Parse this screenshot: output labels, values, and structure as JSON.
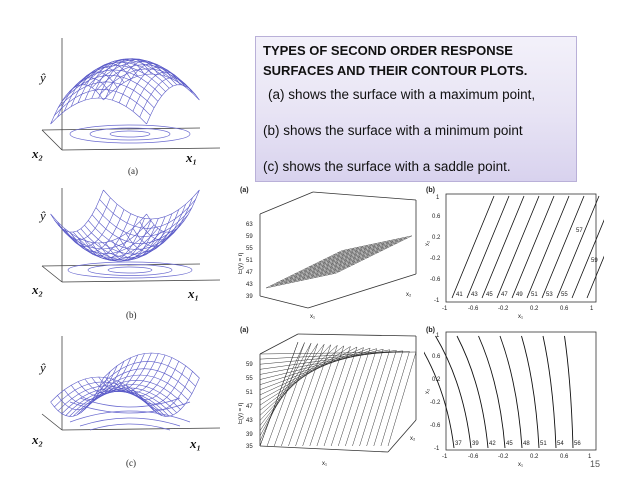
{
  "notes": {
    "title_line1": "TYPES OF SECOND ORDER RESPONSE",
    "title_line2": "SURFACES AND THEIR CONTOUR PLOTS.",
    "line_a": "(a) shows the surface with a maximum point,",
    "line_b": "(b) shows the surface with a minimum point",
    "line_c": "(c) shows the surface with a saddle point."
  },
  "left_panels": {
    "a": {
      "caption": "(a)",
      "y_axis": "ŷ",
      "x1": "x₁",
      "x2": "x₂"
    },
    "b": {
      "caption": "(b)",
      "y_axis": "ŷ",
      "x1": "x₁",
      "x2": "x₂"
    },
    "c": {
      "caption": "(c)",
      "y_axis": "ŷ",
      "x1": "x₁",
      "x2": "x₂"
    }
  },
  "plane_top": {
    "label_a": "(a)",
    "label_b": "(b)",
    "z_axis": "E(y) = η",
    "z_ticks": [
      "63",
      "59",
      "55",
      "51",
      "47",
      "43",
      "39"
    ],
    "x1_axis": "x₁",
    "x2_axis": "x₂",
    "contour_labels": [
      "41",
      "43",
      "45",
      "47",
      "49",
      "51",
      "53",
      "55",
      "57",
      "59"
    ],
    "y_ticks": [
      "1",
      "0.6",
      "0.2",
      "-0.2",
      "-0.6",
      "-1"
    ],
    "x_ticks": [
      "-1",
      "-0.6",
      "-0.2",
      "0.2",
      "0.6",
      "1"
    ]
  },
  "plane_bottom": {
    "label_a": "(a)",
    "label_b": "(b)",
    "z_axis": "E(y) = η",
    "z_ticks": [
      "59",
      "55",
      "51",
      "47",
      "43",
      "39",
      "35"
    ],
    "x1_axis": "x₁",
    "x2_axis": "x₂",
    "contour_labels": [
      "37",
      "39",
      "42",
      "45",
      "48",
      "51",
      "54",
      "56"
    ],
    "y_ticks": [
      "1",
      "0.6",
      "0.2",
      "-0.2",
      "-0.6",
      "-1"
    ],
    "x_ticks": [
      "-1",
      "-0.6",
      "-0.2",
      "0.2",
      "0.6",
      "1"
    ]
  },
  "page_number": "15"
}
